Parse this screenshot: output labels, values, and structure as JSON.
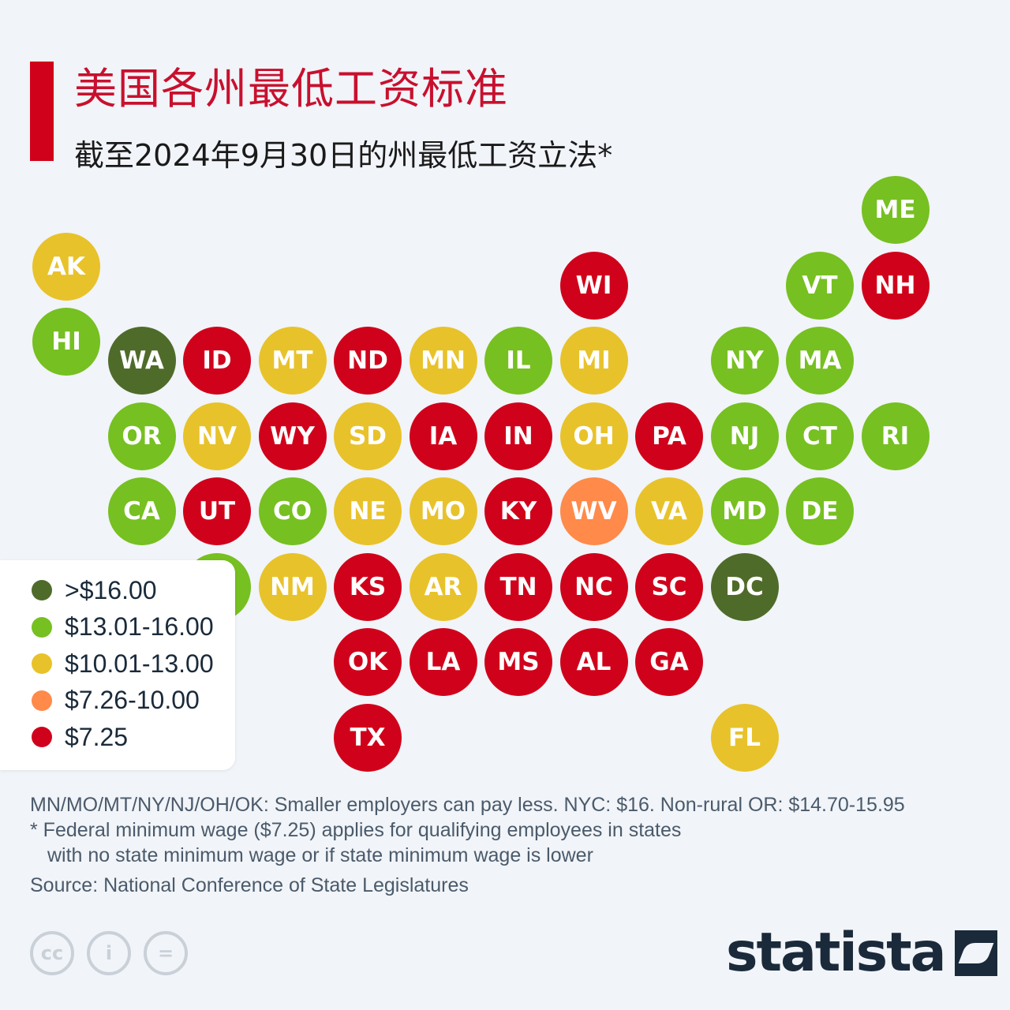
{
  "title": "美国各州最低工资标准",
  "subtitle": "截至2024年9月30日的州最低工资立法*",
  "colors": {
    "c16": "#4f6b2a",
    "c13": "#76c021",
    "c10": "#e8c22a",
    "c7": "#ff8a4a",
    "c725": "#d0021b"
  },
  "legend": [
    {
      "label": ">$16.00",
      "color": "#4f6b2a"
    },
    {
      "label": "$13.01-16.00",
      "color": "#76c021"
    },
    {
      "label": "$10.01-13.00",
      "color": "#e8c22a"
    },
    {
      "label": "$7.26-10.00",
      "color": "#ff8a4a"
    },
    {
      "label": "$7.25",
      "color": "#d0021b"
    }
  ],
  "states": [
    {
      "abbr": "ME",
      "tier": "c13",
      "col": 11,
      "row": 0
    },
    {
      "abbr": "AK",
      "tier": "c10",
      "col": 0,
      "row": 0.75
    },
    {
      "abbr": "WI",
      "tier": "c725",
      "col": 7,
      "row": 1
    },
    {
      "abbr": "VT",
      "tier": "c13",
      "col": 10,
      "row": 1
    },
    {
      "abbr": "NH",
      "tier": "c725",
      "col": 11,
      "row": 1
    },
    {
      "abbr": "HI",
      "tier": "c13",
      "col": 0,
      "row": 1.75
    },
    {
      "abbr": "WA",
      "tier": "c16",
      "col": 1,
      "row": 2
    },
    {
      "abbr": "ID",
      "tier": "c725",
      "col": 2,
      "row": 2
    },
    {
      "abbr": "MT",
      "tier": "c10",
      "col": 3,
      "row": 2
    },
    {
      "abbr": "ND",
      "tier": "c725",
      "col": 4,
      "row": 2
    },
    {
      "abbr": "MN",
      "tier": "c10",
      "col": 5,
      "row": 2
    },
    {
      "abbr": "IL",
      "tier": "c13",
      "col": 6,
      "row": 2
    },
    {
      "abbr": "MI",
      "tier": "c10",
      "col": 7,
      "row": 2
    },
    {
      "abbr": "NY",
      "tier": "c13",
      "col": 9,
      "row": 2
    },
    {
      "abbr": "MA",
      "tier": "c13",
      "col": 10,
      "row": 2
    },
    {
      "abbr": "OR",
      "tier": "c13",
      "col": 1,
      "row": 3
    },
    {
      "abbr": "NV",
      "tier": "c10",
      "col": 2,
      "row": 3
    },
    {
      "abbr": "WY",
      "tier": "c725",
      "col": 3,
      "row": 3
    },
    {
      "abbr": "SD",
      "tier": "c10",
      "col": 4,
      "row": 3
    },
    {
      "abbr": "IA",
      "tier": "c725",
      "col": 5,
      "row": 3
    },
    {
      "abbr": "IN",
      "tier": "c725",
      "col": 6,
      "row": 3
    },
    {
      "abbr": "OH",
      "tier": "c10",
      "col": 7,
      "row": 3
    },
    {
      "abbr": "PA",
      "tier": "c725",
      "col": 8,
      "row": 3
    },
    {
      "abbr": "NJ",
      "tier": "c13",
      "col": 9,
      "row": 3
    },
    {
      "abbr": "CT",
      "tier": "c13",
      "col": 10,
      "row": 3
    },
    {
      "abbr": "RI",
      "tier": "c13",
      "col": 11,
      "row": 3
    },
    {
      "abbr": "CA",
      "tier": "c13",
      "col": 1,
      "row": 4
    },
    {
      "abbr": "UT",
      "tier": "c725",
      "col": 2,
      "row": 4
    },
    {
      "abbr": "CO",
      "tier": "c13",
      "col": 3,
      "row": 4
    },
    {
      "abbr": "NE",
      "tier": "c10",
      "col": 4,
      "row": 4
    },
    {
      "abbr": "MO",
      "tier": "c10",
      "col": 5,
      "row": 4
    },
    {
      "abbr": "KY",
      "tier": "c725",
      "col": 6,
      "row": 4
    },
    {
      "abbr": "WV",
      "tier": "c7",
      "col": 7,
      "row": 4
    },
    {
      "abbr": "VA",
      "tier": "c10",
      "col": 8,
      "row": 4
    },
    {
      "abbr": "MD",
      "tier": "c13",
      "col": 9,
      "row": 4
    },
    {
      "abbr": "DE",
      "tier": "c13",
      "col": 10,
      "row": 4
    },
    {
      "abbr": "AZ",
      "tier": "c13",
      "col": 2,
      "row": 5
    },
    {
      "abbr": "NM",
      "tier": "c10",
      "col": 3,
      "row": 5
    },
    {
      "abbr": "KS",
      "tier": "c725",
      "col": 4,
      "row": 5
    },
    {
      "abbr": "AR",
      "tier": "c10",
      "col": 5,
      "row": 5
    },
    {
      "abbr": "TN",
      "tier": "c725",
      "col": 6,
      "row": 5
    },
    {
      "abbr": "NC",
      "tier": "c725",
      "col": 7,
      "row": 5
    },
    {
      "abbr": "SC",
      "tier": "c725",
      "col": 8,
      "row": 5
    },
    {
      "abbr": "DC",
      "tier": "c16",
      "col": 9,
      "row": 5
    },
    {
      "abbr": "OK",
      "tier": "c725",
      "col": 4,
      "row": 6
    },
    {
      "abbr": "LA",
      "tier": "c725",
      "col": 5,
      "row": 6
    },
    {
      "abbr": "MS",
      "tier": "c725",
      "col": 6,
      "row": 6
    },
    {
      "abbr": "AL",
      "tier": "c725",
      "col": 7,
      "row": 6
    },
    {
      "abbr": "GA",
      "tier": "c725",
      "col": 8,
      "row": 6
    },
    {
      "abbr": "TX",
      "tier": "c725",
      "col": 4,
      "row": 7
    },
    {
      "abbr": "FL",
      "tier": "c10",
      "col": 9,
      "row": 7
    }
  ],
  "notes": {
    "line1": "MN/MO/MT/NY/NJ/OH/OK: Smaller employers can pay less. NYC: $16. Non-rural OR: $14.70-15.95",
    "line2": "* Federal minimum wage ($7.25) applies for qualifying employees in states",
    "line3": "with no state minimum wage or if state minimum wage is lower"
  },
  "source": "Source: National Conference of State Legislatures",
  "cc_icons": [
    {
      "name": "cc-icon",
      "glyph": "cc"
    },
    {
      "name": "attribution-icon",
      "glyph": "i"
    },
    {
      "name": "no-derivatives-icon",
      "glyph": "="
    }
  ],
  "brand": "statista"
}
